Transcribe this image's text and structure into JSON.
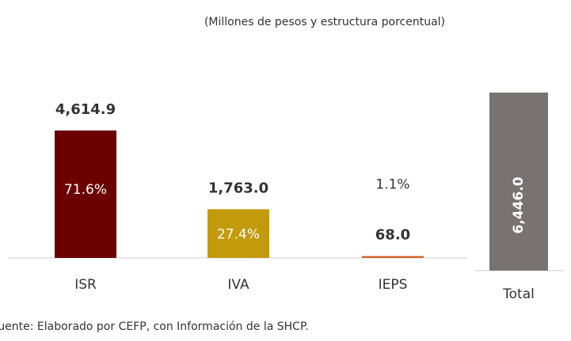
{
  "chart_data": {
    "type": "bar",
    "title": "(Millones de pesos y estructura porcentual)",
    "categories": [
      "ISR",
      "IVA",
      "IEPS",
      "Total"
    ],
    "values": [
      4614.9,
      1763.0,
      68.0,
      6446.0
    ],
    "value_labels": [
      "4,614.9",
      "1,763.0",
      "68.0",
      "6,446.0"
    ],
    "shares": [
      71.6,
      27.4,
      1.1,
      null
    ],
    "share_labels": [
      "71.6%",
      "27.4%",
      "1.1%",
      null
    ],
    "colors": [
      "#6b0000",
      "#c39a0b",
      "#d2652a",
      "#787270"
    ],
    "source": "Fuente: Elaborado por CEFP, con Información de la SHCP."
  }
}
